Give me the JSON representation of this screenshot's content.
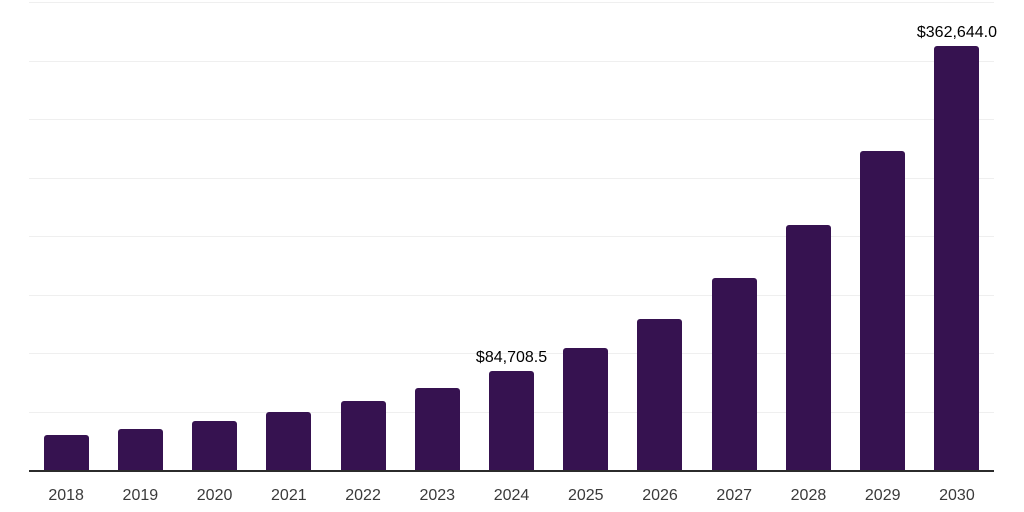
{
  "chart_data": {
    "type": "bar",
    "title": "",
    "xlabel": "",
    "ylabel": "",
    "categories": [
      "2018",
      "2019",
      "2020",
      "2021",
      "2022",
      "2023",
      "2024",
      "2025",
      "2026",
      "2027",
      "2028",
      "2029",
      "2030"
    ],
    "values": [
      29850,
      34950,
      41700,
      49700,
      58700,
      70050,
      84708.5,
      104000,
      129400,
      163900,
      209150,
      273000,
      362644.0
    ],
    "value_labels": [
      "",
      "",
      "",
      "",
      "",
      "",
      "$84,708.5",
      "",
      "",
      "",
      "",
      "",
      "$362,644.0"
    ],
    "ylim": [
      0,
      400000
    ],
    "grid_divisions": 8,
    "grid": "horizontal",
    "legend": "none",
    "colors": {
      "bar": "#361250",
      "axis": "#2b2b2b",
      "gridline": "#efefef",
      "value_label": "#000000",
      "tick_label": "#3a3a3a",
      "background": "#ffffff"
    }
  }
}
